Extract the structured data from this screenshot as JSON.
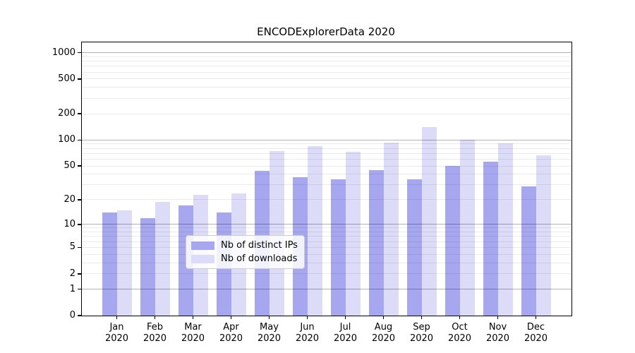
{
  "title": "ENCODExplorerData 2020",
  "legend": {
    "items": [
      {
        "label": "Nb of distinct IPs",
        "color": "#a7a7ef"
      },
      {
        "label": "Nb of downloads",
        "color": "#dcdcf8"
      }
    ]
  },
  "chart_data": {
    "type": "bar",
    "title": "ENCODExplorerData 2020",
    "categories": [
      "Jan",
      "Feb",
      "Mar",
      "Apr",
      "May",
      "Jun",
      "Jul",
      "Aug",
      "Sep",
      "Oct",
      "Nov",
      "Dec"
    ],
    "category_year": "2020",
    "series": [
      {
        "name": "Nb of distinct IPs",
        "color": "#a7a7ef",
        "values": [
          14,
          12,
          17,
          14,
          44,
          37,
          35,
          45,
          35,
          50,
          56,
          29
        ]
      },
      {
        "name": "Nb of downloads",
        "color": "#dcdcf8",
        "values": [
          15,
          19,
          23,
          24,
          75,
          85,
          73,
          93,
          140,
          100,
          91,
          67
        ]
      }
    ],
    "xlabel": "",
    "ylabel": "",
    "yscale": "log1p",
    "ylim": [
      0,
      1300
    ],
    "ytick_values": [
      0,
      1,
      2,
      5,
      10,
      20,
      50,
      100,
      200,
      500,
      1000
    ],
    "ytick_labels": [
      "0",
      "1",
      "2",
      "5",
      "10",
      "20",
      "50",
      "100",
      "200",
      "500",
      "1000"
    ],
    "grid": true,
    "legend_position": "lower center"
  },
  "colors": {
    "major_grid": "#b3b3b3",
    "minor_grid": "#ebebeb",
    "axis": "#000000",
    "background": "#ffffff"
  }
}
